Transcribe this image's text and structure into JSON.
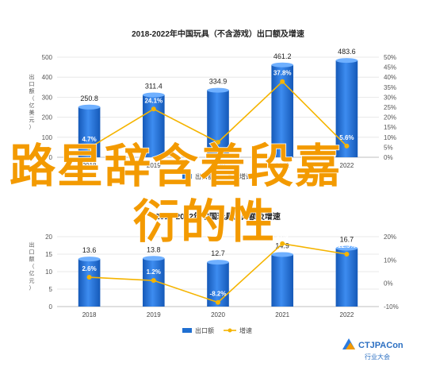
{
  "chart_data": [
    {
      "type": "bar",
      "title": "2018-2022年中国玩具（不含游戏）出口额及增速",
      "categories": [
        "2018",
        "2019",
        "2020",
        "2021",
        "2022"
      ],
      "series": [
        {
          "name": "出口额",
          "values": [
            250.8,
            311.4,
            334.9,
            461.2,
            483.6
          ],
          "color": "#1f6fd1"
        },
        {
          "name": "增速",
          "type": "line",
          "values": [
            4.7,
            24.1,
            7.5,
            37.8,
            5.6
          ],
          "color": "#f5b400"
        }
      ],
      "value_labels": [
        "250.8",
        "311.4",
        "334.9",
        "461.2",
        "483.6"
      ],
      "growth_labels": [
        "4.7%",
        "24.1%",
        "",
        "37.8%",
        "5.6%"
      ],
      "ylim": [
        0,
        500
      ],
      "y2lim": [
        0,
        50
      ],
      "yticks": [
        "0",
        "100",
        "200",
        "300",
        "400",
        "500"
      ],
      "y2ticks": [
        "0%",
        "5%",
        "10%",
        "15%",
        "20%",
        "25%",
        "30%",
        "35%",
        "40%",
        "45%",
        "50%"
      ],
      "ylabel": "出口额（亿美元）",
      "y2label": "",
      "legend": [
        "出口额",
        "增速"
      ],
      "legend_position": "bottom"
    },
    {
      "type": "bar",
      "title": "2018-2022年中国玩具出口额及增速",
      "categories": [
        "2018",
        "2019",
        "2020",
        "2021",
        "2022"
      ],
      "series": [
        {
          "name": "出口额",
          "values": [
            13.6,
            13.8,
            12.7,
            14.9,
            16.7
          ],
          "color": "#1f6fd1"
        },
        {
          "name": "增速",
          "type": "line",
          "values": [
            2.6,
            1.2,
            -8.2,
            17.0,
            12.5
          ],
          "color": "#f5b400"
        }
      ],
      "value_labels": [
        "13.6",
        "13.8",
        "12.7",
        "14.9",
        "16.7"
      ],
      "growth_labels": [
        "2.6%",
        "1.2%",
        "-8.2%",
        "17.0",
        "12.5%"
      ],
      "ylim": [
        0,
        20
      ],
      "y2lim": [
        -10,
        20
      ],
      "yticks": [
        "0",
        "5",
        "10",
        "15",
        "20"
      ],
      "y2ticks": [
        "-10%",
        "0%",
        "10%",
        "20%"
      ],
      "ylabel": "出口额（亿元）",
      "y2label": "",
      "legend": [
        "出口额",
        "增速"
      ],
      "legend_position": "bottom"
    }
  ],
  "watermark": {
    "brand": "CTJPACon",
    "subtitle": "行业大会"
  },
  "overlay": {
    "line1": "路星辞含着段嘉",
    "line2": "衍的性"
  },
  "colors": {
    "bar": "#1f6fd1",
    "bar_light": "#5aa0ff",
    "line": "#f5b400",
    "overlay_text": "#f39a00",
    "axis_text": "#555555"
  }
}
